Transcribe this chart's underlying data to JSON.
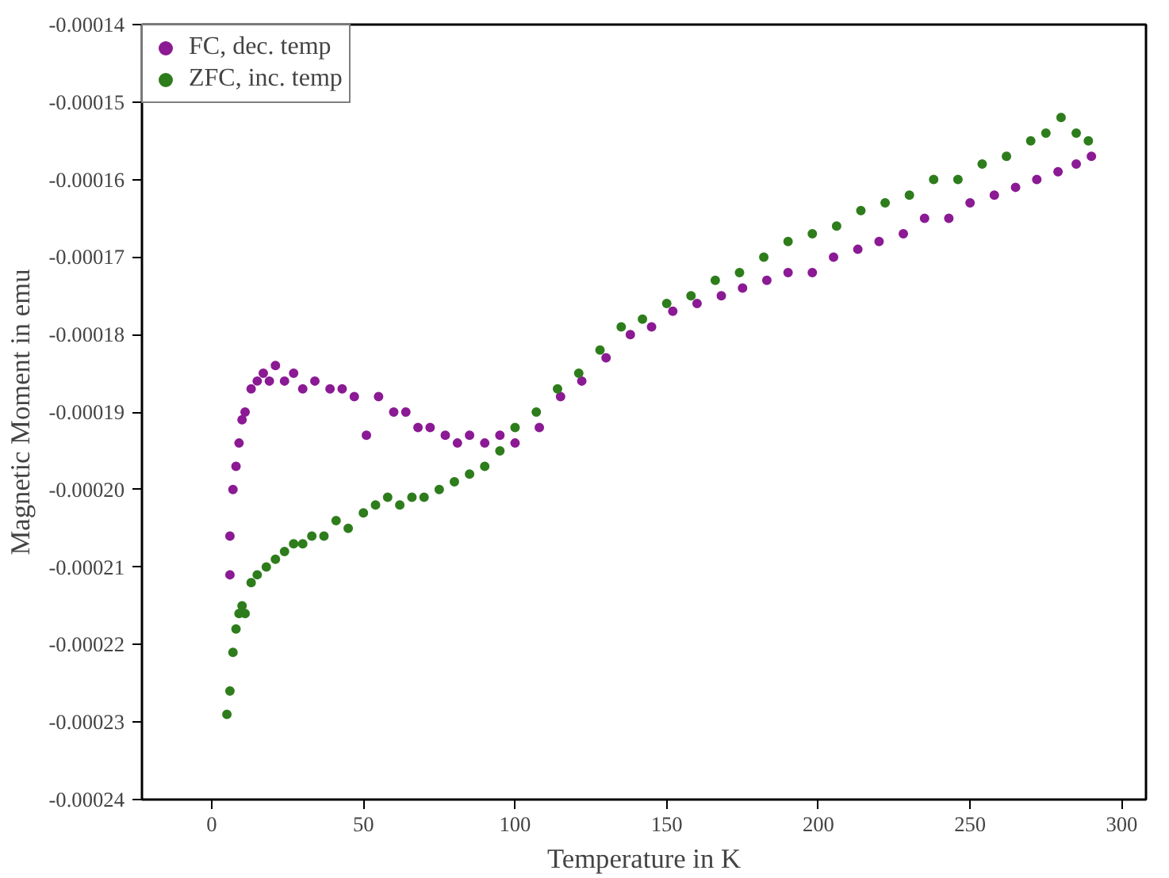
{
  "chart_data": {
    "type": "scatter",
    "xlabel": "Temperature in K",
    "ylabel": "Magnetic Moment in emu",
    "xlim": [
      -23,
      308
    ],
    "ylim": [
      -0.00024,
      -0.00014
    ],
    "xticks": [
      0,
      50,
      100,
      150,
      200,
      250,
      300
    ],
    "yticks": [
      -0.00024,
      -0.00023,
      -0.00022,
      -0.00021,
      {
        "value": -0.0002,
        "label": "-0.00020"
      },
      -0.00019,
      -0.00018,
      -0.00017,
      -0.00016,
      -0.00015,
      -0.00014
    ],
    "grid": false,
    "legend": "top left",
    "marker": "circle",
    "series": [
      {
        "name": "FC, dec. temp",
        "color": "#8b1a94",
        "x": [
          6,
          6,
          7,
          8,
          9,
          10,
          11,
          13,
          15,
          17,
          19,
          21,
          24,
          27,
          30,
          34,
          39,
          43,
          47,
          51,
          55,
          60,
          64,
          68,
          72,
          77,
          81,
          85,
          90,
          95,
          100,
          108,
          115,
          122,
          130,
          138,
          145,
          152,
          160,
          168,
          175,
          183,
          190,
          198,
          205,
          213,
          220,
          228,
          235,
          243,
          250,
          258,
          265,
          272,
          279,
          285,
          290
        ],
        "values": [
          -0.000211,
          -0.000206,
          -0.0002,
          -0.000197,
          -0.000194,
          -0.000191,
          -0.00019,
          -0.000187,
          -0.000186,
          -0.000185,
          -0.000186,
          -0.000184,
          -0.000186,
          -0.000185,
          -0.000187,
          -0.000186,
          -0.000187,
          -0.000187,
          -0.000188,
          -0.000193,
          -0.000188,
          -0.00019,
          -0.00019,
          -0.000192,
          -0.000192,
          -0.000193,
          -0.000194,
          -0.000193,
          -0.000194,
          -0.000193,
          -0.000194,
          -0.000192,
          -0.000188,
          -0.000186,
          -0.000183,
          -0.00018,
          -0.000179,
          -0.000177,
          -0.000176,
          -0.000175,
          -0.000174,
          -0.000173,
          -0.000172,
          -0.000172,
          -0.00017,
          -0.000169,
          -0.000168,
          -0.000167,
          -0.000165,
          -0.000165,
          -0.000163,
          -0.000162,
          -0.000161,
          -0.00016,
          -0.000159,
          -0.000158,
          -0.000157
        ]
      },
      {
        "name": "ZFC, inc. temp",
        "color": "#2e7d1c",
        "x": [
          5,
          6,
          7,
          8,
          9,
          10,
          11,
          13,
          15,
          18,
          21,
          24,
          27,
          30,
          33,
          37,
          41,
          45,
          50,
          54,
          58,
          62,
          66,
          70,
          75,
          80,
          85,
          90,
          95,
          100,
          107,
          114,
          121,
          128,
          135,
          142,
          150,
          158,
          166,
          174,
          182,
          190,
          198,
          206,
          214,
          222,
          230,
          238,
          246,
          254,
          262,
          270,
          275,
          280,
          285,
          289
        ],
        "values": [
          -0.000229,
          -0.000226,
          -0.000221,
          -0.000218,
          -0.000216,
          -0.000215,
          -0.000216,
          -0.000212,
          -0.000211,
          -0.00021,
          -0.000209,
          -0.000208,
          -0.000207,
          -0.000207,
          -0.000206,
          -0.000206,
          -0.000204,
          -0.000205,
          -0.000203,
          -0.000202,
          -0.000201,
          -0.000202,
          -0.000201,
          -0.000201,
          -0.0002,
          -0.000199,
          -0.000198,
          -0.000197,
          -0.000195,
          -0.000192,
          -0.00019,
          -0.000187,
          -0.000185,
          -0.000182,
          -0.000179,
          -0.000178,
          -0.000176,
          -0.000175,
          -0.000173,
          -0.000172,
          -0.00017,
          -0.000168,
          -0.000167,
          -0.000166,
          -0.000164,
          -0.000163,
          -0.000162,
          -0.00016,
          -0.00016,
          -0.000158,
          -0.000157,
          -0.000155,
          -0.000154,
          -0.000152,
          -0.000154,
          -0.000155
        ]
      }
    ]
  }
}
